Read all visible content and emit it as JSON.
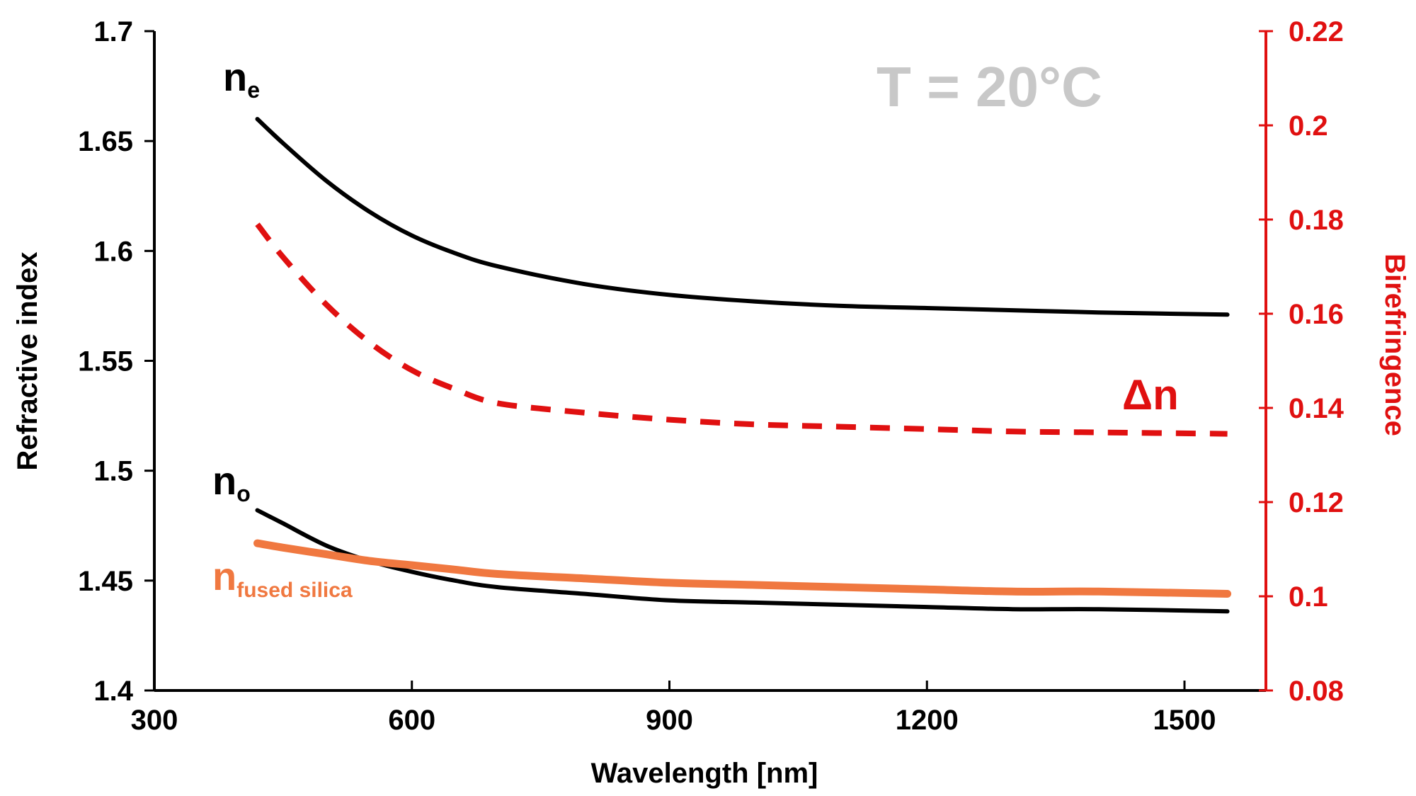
{
  "chart_data": {
    "type": "line",
    "title": "",
    "annotation": "T = 20°C",
    "xlabel": "Wavelength [nm]",
    "ylabel_left": "Refractive index",
    "ylabel_right": "Birefringence",
    "xlim": [
      300,
      1550
    ],
    "ylim_left": [
      1.4,
      1.7
    ],
    "ylim_right": [
      0.08,
      0.22
    ],
    "x_ticks": [
      300,
      600,
      900,
      1200,
      1500
    ],
    "x_tick_labels": [
      "300",
      "600",
      "900",
      "1200",
      "1500"
    ],
    "y_left_ticks": [
      1.4,
      1.45,
      1.5,
      1.55,
      1.6,
      1.65,
      1.7
    ],
    "y_left_tick_labels": [
      "1.4",
      "1.45",
      "1.5",
      "1.55",
      "1.6",
      "1.65",
      "1.7"
    ],
    "y_right_ticks": [
      0.08,
      0.1,
      0.12,
      0.14,
      0.16,
      0.18,
      0.2,
      0.22
    ],
    "y_right_tick_labels": [
      "0.08",
      "0.1",
      "0.12",
      "0.14",
      "0.16",
      "0.18",
      "0.2",
      "0.22"
    ],
    "x": [
      420,
      450,
      500,
      550,
      600,
      650,
      700,
      800,
      900,
      1000,
      1100,
      1200,
      1300,
      1400,
      1550
    ],
    "series": [
      {
        "name": "n_e",
        "axis": "left",
        "color": "#000000",
        "style": "solid",
        "values": [
          1.66,
          1.649,
          1.632,
          1.618,
          1.607,
          1.599,
          1.593,
          1.585,
          1.58,
          1.577,
          1.575,
          1.574,
          1.573,
          1.572,
          1.571
        ]
      },
      {
        "name": "n_o",
        "axis": "left",
        "color": "#000000",
        "style": "solid",
        "values": [
          1.482,
          1.476,
          1.466,
          1.459,
          1.454,
          1.45,
          1.447,
          1.444,
          1.441,
          1.44,
          1.439,
          1.438,
          1.437,
          1.437,
          1.436
        ]
      },
      {
        "name": "n_fused_silica",
        "axis": "left",
        "color": "#f07840",
        "style": "solid-thick",
        "values": [
          1.467,
          1.465,
          1.462,
          1.459,
          1.457,
          1.455,
          1.453,
          1.451,
          1.449,
          1.448,
          1.447,
          1.446,
          1.445,
          1.445,
          1.444
        ]
      },
      {
        "name": "Δn",
        "axis": "right",
        "color": "#e01010",
        "style": "dashed",
        "values": [
          0.179,
          0.172,
          0.162,
          0.154,
          0.148,
          0.144,
          0.141,
          0.139,
          0.1375,
          0.1365,
          0.136,
          0.1355,
          0.135,
          0.1348,
          0.1345
        ]
      }
    ],
    "labels": {
      "ne_main": "n",
      "ne_sub": "e",
      "no_main": "n",
      "no_sub": "o",
      "fs_main": "n",
      "fs_sub": "fused silica",
      "dn": "Δn"
    },
    "colors": {
      "axis_left": "#000000",
      "axis_right": "#e01010",
      "annotation": "#c8c8c8",
      "fused_silica": "#f07840",
      "birefringence": "#e01010"
    }
  }
}
